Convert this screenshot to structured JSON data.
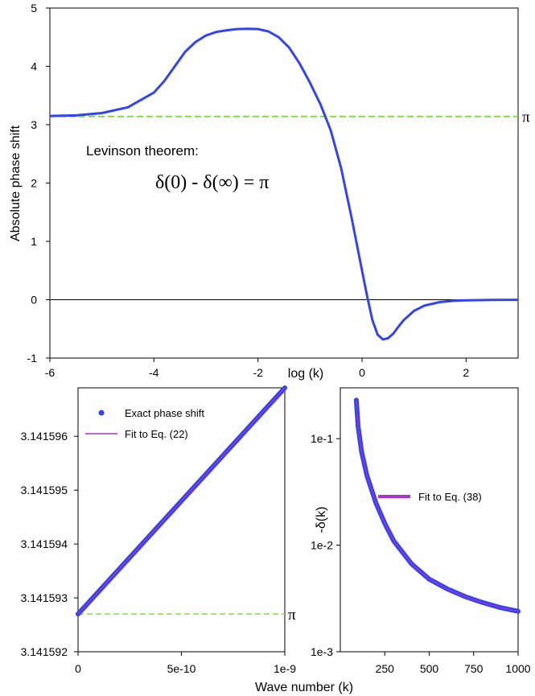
{
  "chart_data": [
    {
      "type": "line",
      "xlabel": "log (k)",
      "ylabel": "Absolute phase shift",
      "xlim": [
        -6,
        3
      ],
      "ylim": [
        -1,
        5
      ],
      "xticks": [
        "-6",
        "-4",
        "-2",
        "0",
        "2"
      ],
      "xtick_values": [
        -6,
        -4,
        -2,
        0,
        2
      ],
      "yticks": [
        "-1",
        "0",
        "1",
        "2",
        "3",
        "4",
        "5"
      ],
      "ytick_values": [
        -1,
        0,
        1,
        2,
        3,
        4,
        5
      ],
      "annotation": "Levinson theorem:",
      "formula": "δ(0) - δ(∞) = π",
      "reference_line": {
        "y": 3.14159,
        "label": "π",
        "color": "#7fe03a"
      },
      "zero_line": 0,
      "series": [
        {
          "color": "#3344ee",
          "x": [
            -6.0,
            -5.5,
            -5.0,
            -4.5,
            -4.0,
            -3.8,
            -3.6,
            -3.4,
            -3.2,
            -3.0,
            -2.8,
            -2.6,
            -2.4,
            -2.2,
            -2.0,
            -1.8,
            -1.6,
            -1.4,
            -1.2,
            -1.0,
            -0.8,
            -0.6,
            -0.4,
            -0.2,
            0.0,
            0.1,
            0.2,
            0.3,
            0.4,
            0.5,
            0.6,
            0.7,
            0.8,
            1.0,
            1.2,
            1.5,
            1.8,
            2.0,
            2.5,
            3.0
          ],
          "y": [
            3.15,
            3.16,
            3.2,
            3.3,
            3.55,
            3.75,
            4.0,
            4.25,
            4.42,
            4.53,
            4.59,
            4.62,
            4.64,
            4.645,
            4.64,
            4.6,
            4.5,
            4.32,
            4.05,
            3.72,
            3.35,
            2.9,
            2.25,
            1.4,
            0.5,
            0.05,
            -0.35,
            -0.6,
            -0.68,
            -0.66,
            -0.58,
            -0.46,
            -0.35,
            -0.19,
            -0.1,
            -0.04,
            -0.015,
            -0.01,
            -0.003,
            -0.001
          ]
        }
      ]
    },
    {
      "type": "scatter",
      "xlim": [
        0,
        1e-09
      ],
      "ylim": [
        3.141592,
        3.1415969
      ],
      "xticks": [
        "0",
        "5e-10",
        "1e-9"
      ],
      "xtick_values": [
        0,
        5e-10,
        1e-09
      ],
      "yticks": [
        "3.141592",
        "3.141593",
        "3.141594",
        "3.141595",
        "3.141596"
      ],
      "ytick_values": [
        3.141592,
        3.141593,
        3.141594,
        3.141595,
        3.141596
      ],
      "reference_line": {
        "y": 3.1415927,
        "label": "π",
        "color": "#7fe03a"
      },
      "legend_position": "top-left",
      "series": [
        {
          "name": "Exact phase shift",
          "color": "#3344ee",
          "x": [
            0,
            1e-09
          ],
          "y": [
            3.1415927,
            3.1415969
          ]
        },
        {
          "name": "Fit to Eq. (22)",
          "color": "#aa33cc",
          "x": [
            0,
            1e-09
          ],
          "y": [
            3.1415927,
            3.1415969
          ]
        }
      ]
    },
    {
      "type": "scatter",
      "xlabel": "Wave number (k)",
      "ylabel": "-δ(k)",
      "yscale": "log",
      "xlim": [
        0,
        1000
      ],
      "ylim": [
        0.001,
        0.3
      ],
      "xticks": [
        "250",
        "500",
        "750",
        "1000"
      ],
      "xtick_values": [
        250,
        500,
        750,
        1000
      ],
      "yticks": [
        "1e-3",
        "1e-2",
        "1e-1"
      ],
      "ytick_values": [
        0.001,
        0.01,
        0.1
      ],
      "legend_position": "center-right",
      "series": [
        {
          "name": "",
          "color": "#3344ee",
          "x": [
            90,
            100,
            120,
            150,
            200,
            250,
            300,
            400,
            500,
            600,
            700,
            800,
            900,
            1000
          ],
          "y": [
            0.23,
            0.13,
            0.075,
            0.045,
            0.025,
            0.016,
            0.011,
            0.0067,
            0.0048,
            0.0039,
            0.0033,
            0.0029,
            0.0026,
            0.0024
          ]
        },
        {
          "name": "Fit to Eq. (38)",
          "color": "#aa33cc",
          "x": [
            90,
            100,
            120,
            150,
            200,
            250,
            300,
            400,
            500,
            600,
            700,
            800,
            900,
            1000
          ],
          "y": [
            0.23,
            0.13,
            0.075,
            0.045,
            0.025,
            0.016,
            0.011,
            0.0067,
            0.0048,
            0.0039,
            0.0033,
            0.0029,
            0.0026,
            0.0024
          ]
        }
      ]
    }
  ]
}
